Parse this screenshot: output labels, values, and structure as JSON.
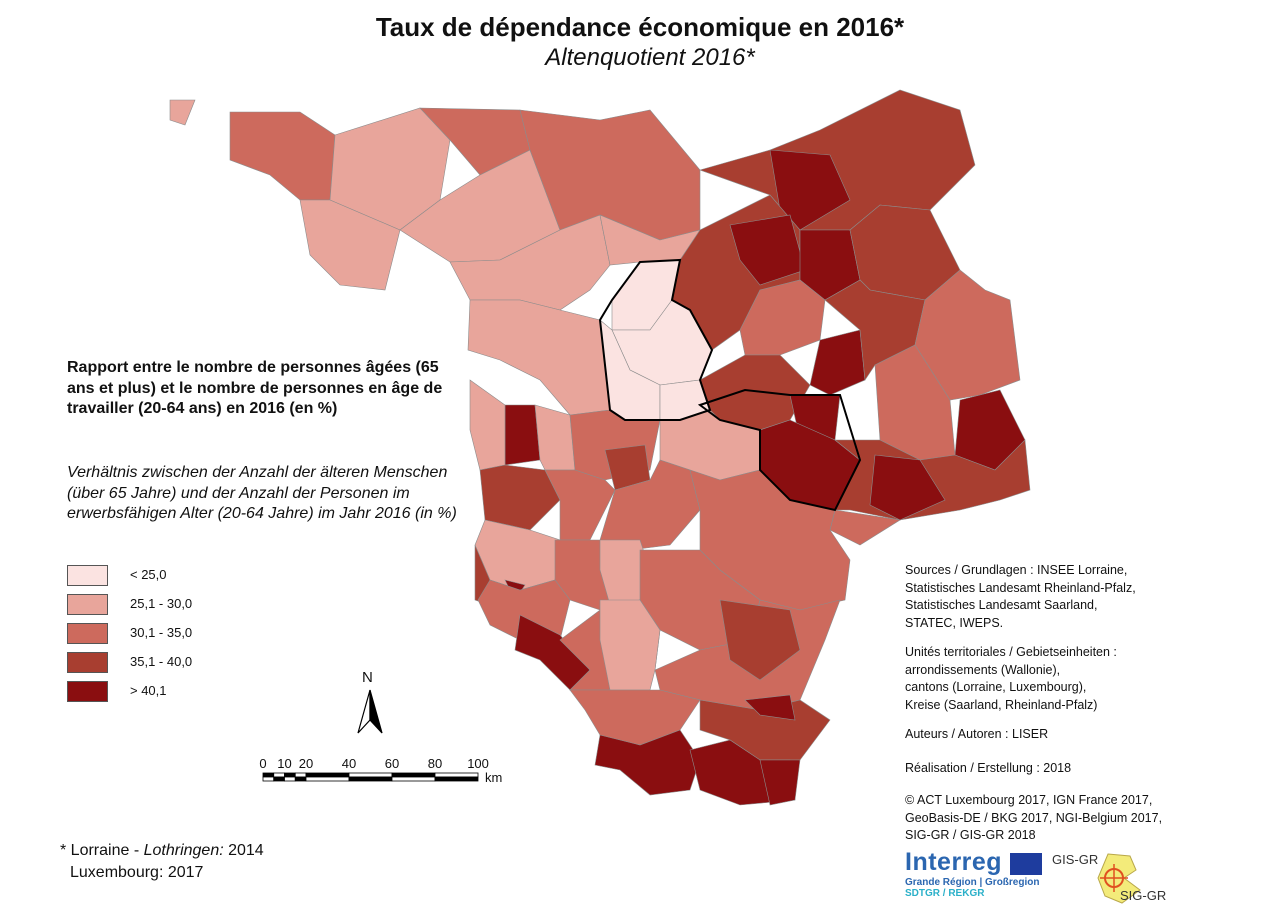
{
  "title": "Taux de dépendance économique en 2016*",
  "subtitle": "Altenquotient 2016*",
  "legend": {
    "title": "Rapport entre le nombre de personnes âgées (65 ans et plus) et le nombre de personnes en âge de travailler (20-64 ans) en 2016 (en %)",
    "subtitle": "Verhältnis zwischen der Anzahl der älteren Menschen (über 65 Jahre) und der Anzahl der Personen im erwerbsfähigen Alter (20-64 Jahre) im Jahr 2016 (in %)",
    "classes": [
      {
        "label": "< 25,0",
        "color": "#fbe3e1"
      },
      {
        "label": "25,1 - 30,0",
        "color": "#e8a59b"
      },
      {
        "label": "30,1 - 35,0",
        "color": "#cd6a5d"
      },
      {
        "label": "35,1 - 40,0",
        "color": "#a83e30"
      },
      {
        "label": "> 40,1",
        "color": "#8a0e10"
      }
    ]
  },
  "north_arrow": {
    "label": "N"
  },
  "scale_bar": {
    "ticks": [
      "0",
      "10",
      "20",
      "40",
      "60",
      "80",
      "100"
    ],
    "unit": "km"
  },
  "info": {
    "sources": [
      "Sources / Grundlagen : INSEE Lorraine,",
      "Statistisches Landesamt Rheinland-Pfalz,",
      "Statistisches Landesamt Saarland,",
      "STATEC, IWEPS."
    ],
    "units": [
      "Unités territoriales / Gebietseinheiten :",
      "arrondissements (Wallonie),",
      "cantons (Lorraine, Luxembourg),",
      "Kreise (Saarland, Rheinland-Pfalz)"
    ],
    "authors": "Auteurs / Autoren : LISER",
    "realisation": "Réalisation / Erstellung : 2018",
    "copyright": [
      "© ACT Luxembourg 2017, IGN France 2017,",
      "GeoBasis-DE / BKG 2017, NGI-Belgium 2017,",
      "SIG-GR / GIS-GR 2018"
    ]
  },
  "footnote": {
    "line1_a": "* Lorraine - ",
    "line1_b": "Lothringen:",
    "line1_c": " 2014",
    "line2": "Luxembourg: 2017"
  },
  "logos": {
    "interreg": "Interreg",
    "interreg_sub": "Grande Région | Großregion",
    "interreg_sub2": "SDTGR / REKGR",
    "gis_top": "GIS-GR",
    "gis_bottom": "SIG-GR"
  }
}
